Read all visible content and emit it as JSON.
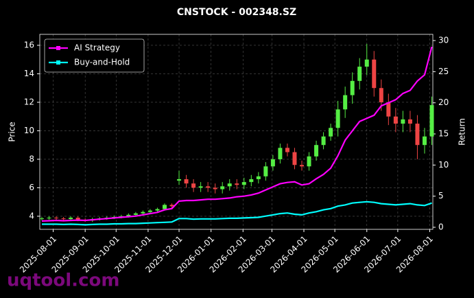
{
  "chart_data": {
    "type": "candlestick-returns",
    "title": "CNSTOCK - 002348.SZ",
    "ylabel": "Price",
    "y2label": "Return",
    "watermark": "uqtool.com",
    "x": [
      "2025-07-21",
      "2025-07-28",
      "2025-08-04",
      "2025-08-11",
      "2025-08-18",
      "2025-08-25",
      "2025-09-01",
      "2025-09-08",
      "2025-09-15",
      "2025-09-22",
      "2025-09-29",
      "2025-10-06",
      "2025-10-13",
      "2025-10-20",
      "2025-10-27",
      "2025-11-03",
      "2025-11-10",
      "2025-11-17",
      "2025-11-24",
      "2025-12-01",
      "2025-12-08",
      "2025-12-15",
      "2025-12-22",
      "2025-12-29",
      "2026-01-05",
      "2026-01-12",
      "2026-01-19",
      "2026-01-26",
      "2026-02-02",
      "2026-02-09",
      "2026-02-16",
      "2026-02-23",
      "2026-03-02",
      "2026-03-09",
      "2026-03-16",
      "2026-03-23",
      "2026-03-30",
      "2026-04-06",
      "2026-04-13",
      "2026-04-20",
      "2026-04-27",
      "2026-05-04",
      "2026-05-11",
      "2026-05-18",
      "2026-05-25",
      "2026-06-01",
      "2026-06-08",
      "2026-06-15",
      "2026-06-22",
      "2026-06-29",
      "2026-07-06",
      "2026-07-13",
      "2026-07-20",
      "2026-07-27",
      "2026-08-03"
    ],
    "open": [
      3.8,
      3.85,
      3.9,
      3.85,
      3.8,
      3.9,
      3.75,
      3.7,
      3.8,
      3.85,
      3.9,
      3.95,
      4.0,
      4.1,
      4.2,
      4.3,
      4.4,
      4.5,
      4.8,
      6.5,
      6.6,
      6.3,
      6.0,
      6.1,
      6.0,
      5.9,
      6.1,
      6.3,
      6.2,
      6.4,
      6.6,
      6.8,
      7.5,
      8.0,
      8.8,
      8.5,
      7.6,
      7.5,
      8.2,
      9.0,
      9.6,
      10.2,
      11.5,
      12.5,
      13.5,
      14.5,
      15.0,
      13.0,
      12.0,
      11.0,
      10.5,
      10.8,
      10.5,
      9.0,
      9.6
    ],
    "high": [
      3.95,
      4.0,
      4.0,
      3.95,
      4.0,
      4.0,
      3.85,
      3.9,
      3.95,
      4.0,
      4.05,
      4.1,
      4.2,
      4.3,
      4.4,
      4.5,
      4.6,
      4.9,
      4.9,
      7.2,
      6.9,
      6.6,
      6.4,
      6.4,
      6.3,
      6.4,
      6.6,
      6.6,
      6.7,
      6.9,
      7.1,
      7.8,
      8.3,
      9.1,
      9.1,
      8.8,
      7.9,
      8.5,
      9.3,
      9.9,
      10.5,
      12.1,
      13.1,
      14.1,
      15.1,
      16.1,
      15.6,
      13.6,
      12.6,
      11.6,
      11.4,
      11.4,
      11.1,
      10.2,
      12.4
    ],
    "low": [
      3.7,
      3.75,
      3.75,
      3.7,
      3.7,
      3.65,
      3.6,
      3.6,
      3.7,
      3.75,
      3.8,
      3.85,
      3.9,
      4.0,
      4.1,
      4.2,
      4.3,
      4.4,
      4.6,
      6.2,
      6.0,
      5.7,
      5.7,
      5.7,
      5.6,
      5.6,
      5.8,
      5.9,
      5.9,
      6.1,
      6.3,
      6.5,
      7.2,
      7.7,
      8.2,
      7.3,
      7.2,
      7.2,
      7.9,
      8.7,
      9.3,
      9.6,
      10.9,
      11.9,
      12.9,
      13.9,
      12.4,
      11.4,
      10.4,
      9.9,
      9.9,
      9.9,
      8.0,
      8.4,
      9.0
    ],
    "close": [
      3.85,
      3.9,
      3.85,
      3.8,
      3.9,
      3.75,
      3.7,
      3.8,
      3.85,
      3.9,
      3.95,
      4.0,
      4.1,
      4.2,
      4.3,
      4.4,
      4.5,
      4.8,
      4.7,
      6.6,
      6.3,
      6.0,
      6.1,
      6.0,
      5.9,
      6.1,
      6.3,
      6.2,
      6.4,
      6.6,
      6.8,
      7.5,
      8.0,
      8.8,
      8.5,
      7.6,
      7.5,
      8.2,
      9.0,
      9.6,
      10.2,
      11.5,
      12.5,
      13.5,
      14.5,
      15.0,
      13.0,
      12.0,
      11.0,
      10.5,
      10.8,
      10.5,
      9.0,
      9.6,
      11.8
    ],
    "up_color": "#55ee44",
    "down_color": "#ee4444",
    "series": [
      {
        "name": "AI Strategy",
        "color": "#ff00ff",
        "axis": "y2",
        "values": [
          1.0,
          1.05,
          1.1,
          1.05,
          1.1,
          1.15,
          1.1,
          1.2,
          1.3,
          1.4,
          1.5,
          1.6,
          1.7,
          1.8,
          2.0,
          2.2,
          2.4,
          2.8,
          3.0,
          4.2,
          4.3,
          4.3,
          4.4,
          4.5,
          4.5,
          4.6,
          4.7,
          4.9,
          5.0,
          5.2,
          5.5,
          6.0,
          6.5,
          7.0,
          7.2,
          7.3,
          6.8,
          7.0,
          7.8,
          8.5,
          9.5,
          11.5,
          14.0,
          15.5,
          17.0,
          17.5,
          18.0,
          19.5,
          20.0,
          20.5,
          21.5,
          22.0,
          23.5,
          24.5,
          29.0
        ]
      },
      {
        "name": "Buy-and-Hold",
        "color": "#00ffff",
        "axis": "y2",
        "values": [
          0.5,
          0.5,
          0.5,
          0.45,
          0.5,
          0.45,
          0.4,
          0.45,
          0.5,
          0.5,
          0.55,
          0.55,
          0.6,
          0.6,
          0.65,
          0.7,
          0.75,
          0.8,
          0.85,
          1.4,
          1.4,
          1.3,
          1.35,
          1.35,
          1.35,
          1.4,
          1.45,
          1.45,
          1.5,
          1.55,
          1.6,
          1.8,
          2.0,
          2.2,
          2.3,
          2.1,
          2.0,
          2.3,
          2.5,
          2.8,
          3.0,
          3.4,
          3.6,
          3.9,
          4.0,
          4.1,
          4.0,
          3.8,
          3.7,
          3.6,
          3.7,
          3.8,
          3.6,
          3.5,
          3.9
        ]
      }
    ],
    "xlim": [
      "2025-07-19",
      "2026-08-04"
    ],
    "xticks": [
      "2025-08-01",
      "2025-09-01",
      "2025-10-01",
      "2025-11-01",
      "2025-12-01",
      "2026-01-01",
      "2026-02-01",
      "2026-03-01",
      "2026-04-01",
      "2026-05-01",
      "2026-06-01",
      "2026-07-01",
      "2026-08-01"
    ],
    "ylim": [
      3.08,
      16.77
    ],
    "yticks": [
      4,
      6,
      8,
      10,
      12,
      14,
      16
    ],
    "y2lim": [
      -0.33,
      31
    ],
    "y2ticks": [
      0,
      5,
      10,
      15,
      20,
      25,
      30
    ],
    "grid": true,
    "legend": "upper left"
  }
}
